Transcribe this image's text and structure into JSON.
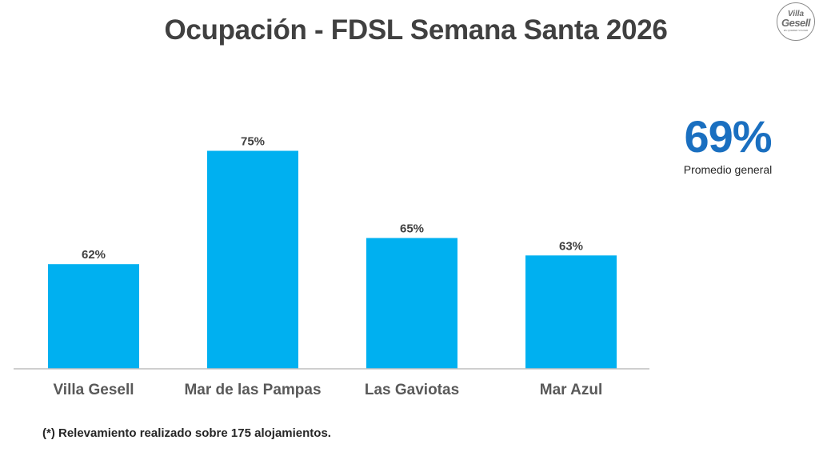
{
  "header": {
    "title": "Ocupación - FDSL Semana Santa 2026"
  },
  "logo": {
    "line1": "Villa",
    "line2": "Gesell",
    "tagline": "ES QUERER VOLVER"
  },
  "summary": {
    "value": "69%",
    "label": "Promedio general",
    "color": "#1a6fc0"
  },
  "footnote": "(*) Relevamiento realizado sobre 175 alojamientos.",
  "chart_data": {
    "type": "bar",
    "title": "Ocupación - FDSL Semana Santa 2026",
    "xlabel": "",
    "ylabel": "",
    "categories": [
      "Villa Gesell",
      "Mar de las Pampas",
      "Las Gaviotas",
      "Mar Azul"
    ],
    "values": [
      62,
      75,
      65,
      63
    ],
    "data_labels": [
      "62%",
      "75%",
      "65%",
      "63%"
    ],
    "unit": "%",
    "ylim": [
      50,
      80
    ],
    "grid": false,
    "legend": "none",
    "bar_color": "#00b0f0",
    "axis_color": "#bfbfbf"
  }
}
